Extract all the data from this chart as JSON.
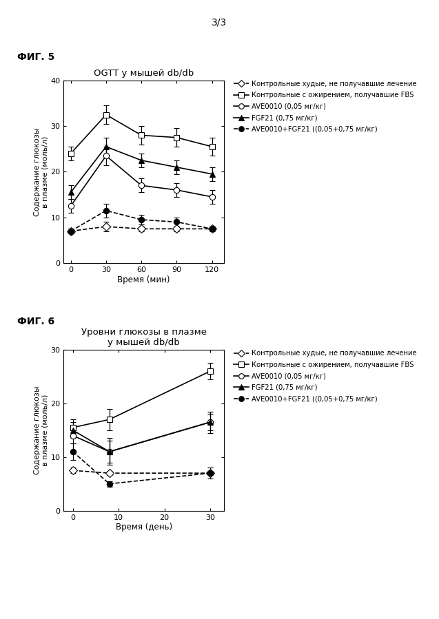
{
  "page_label": "3/3",
  "fig5_label": "ФИГ. 5",
  "fig6_label": "ФИГ. 6",
  "fig5": {
    "title": "OGTT у мышей db/db",
    "xlabel": "Время (мин)",
    "ylabel": "Содержание глюкозы\nв плазме (моль/л)",
    "xlim": [
      -6,
      130
    ],
    "ylim": [
      0,
      40
    ],
    "xticks": [
      0,
      30,
      60,
      90,
      120
    ],
    "yticks": [
      0,
      10,
      20,
      30,
      40
    ],
    "series": [
      {
        "label": "Контрольные худые, не получавшие лечение",
        "x": [
          0,
          30,
          60,
          90,
          120
        ],
        "y": [
          7.0,
          8.0,
          7.5,
          7.5,
          7.5
        ],
        "yerr": [
          0.5,
          1.0,
          0.5,
          0.5,
          0.5
        ],
        "color": "black",
        "linestyle": "dashed",
        "marker": "D",
        "markerfacecolor": "white",
        "markersize": 6,
        "linewidth": 1.2
      },
      {
        "label": "Контрольные с ожирением, получавшие FBS",
        "x": [
          0,
          30,
          60,
          90,
          120
        ],
        "y": [
          24.0,
          32.5,
          28.0,
          27.5,
          25.5
        ],
        "yerr": [
          1.5,
          2.0,
          2.0,
          2.0,
          2.0
        ],
        "color": "black",
        "linestyle": "solid",
        "marker": "s",
        "markerfacecolor": "white",
        "markersize": 6,
        "linewidth": 1.2
      },
      {
        "label": "AVE0010 (0,05 мг/кг)",
        "x": [
          0,
          30,
          60,
          90,
          120
        ],
        "y": [
          12.5,
          23.5,
          17.0,
          16.0,
          14.5
        ],
        "yerr": [
          1.5,
          2.0,
          1.5,
          1.5,
          1.5
        ],
        "color": "black",
        "linestyle": "solid",
        "marker": "o",
        "markerfacecolor": "white",
        "markersize": 6,
        "linewidth": 1.2
      },
      {
        "label": "FGF21 (0,75 мг/кг)",
        "x": [
          0,
          30,
          60,
          90,
          120
        ],
        "y": [
          15.5,
          25.5,
          22.5,
          21.0,
          19.5
        ],
        "yerr": [
          1.5,
          2.0,
          1.5,
          1.5,
          1.5
        ],
        "color": "black",
        "linestyle": "solid",
        "marker": "^",
        "markerfacecolor": "black",
        "markersize": 6,
        "linewidth": 1.2
      },
      {
        "label": "AVE0010+FGF21 ((0,05+0,75 мг/кг)",
        "x": [
          0,
          30,
          60,
          90,
          120
        ],
        "y": [
          7.0,
          11.5,
          9.5,
          9.0,
          7.5
        ],
        "yerr": [
          0.5,
          1.5,
          1.0,
          1.0,
          0.5
        ],
        "color": "black",
        "linestyle": "dashed",
        "marker": "o",
        "markerfacecolor": "black",
        "markersize": 6,
        "linewidth": 1.2
      }
    ]
  },
  "fig6": {
    "title": "Уровни глюкозы в плазме\nу мышей db/db",
    "xlabel": "Время (день)",
    "ylabel": "Содержание глюкозы\nв плазме (моль/л)",
    "xlim": [
      -2,
      33
    ],
    "ylim": [
      0,
      30
    ],
    "xticks": [
      0,
      10,
      20,
      30
    ],
    "yticks": [
      0,
      10,
      20,
      30
    ],
    "series": [
      {
        "label": "Контрольные худые, не получавшие лечение",
        "x": [
          0,
          8,
          30
        ],
        "y": [
          7.5,
          7.0,
          7.0
        ],
        "yerr": [
          0.5,
          0.4,
          0.4
        ],
        "color": "black",
        "linestyle": "dashed",
        "marker": "D",
        "markerfacecolor": "white",
        "markersize": 6,
        "linewidth": 1.2
      },
      {
        "label": "Контрольные с ожирением, получавшие FBS",
        "x": [
          0,
          8,
          30
        ],
        "y": [
          15.5,
          17.0,
          26.0
        ],
        "yerr": [
          1.5,
          2.0,
          1.5
        ],
        "color": "black",
        "linestyle": "solid",
        "marker": "s",
        "markerfacecolor": "white",
        "markersize": 6,
        "linewidth": 1.2
      },
      {
        "label": "AVE0010 (0,05 мг/кг)",
        "x": [
          0,
          8,
          30
        ],
        "y": [
          14.0,
          11.0,
          16.5
        ],
        "yerr": [
          1.5,
          2.5,
          2.0
        ],
        "color": "black",
        "linestyle": "solid",
        "marker": "o",
        "markerfacecolor": "white",
        "markersize": 6,
        "linewidth": 1.2
      },
      {
        "label": "FGF21 (0,75 мг/кг)",
        "x": [
          0,
          8,
          30
        ],
        "y": [
          15.0,
          11.0,
          16.5
        ],
        "yerr": [
          1.5,
          2.0,
          1.5
        ],
        "color": "black",
        "linestyle": "solid",
        "marker": "^",
        "markerfacecolor": "black",
        "markersize": 6,
        "linewidth": 1.2
      },
      {
        "label": "AVE0010+FGF21 ((0,05+0,75 мг/кг)",
        "x": [
          0,
          8,
          30
        ],
        "y": [
          11.0,
          5.0,
          7.0
        ],
        "yerr": [
          1.5,
          0.5,
          1.0
        ],
        "color": "black",
        "linestyle": "dashed",
        "marker": "o",
        "markerfacecolor": "black",
        "markersize": 6,
        "linewidth": 1.2
      }
    ]
  }
}
